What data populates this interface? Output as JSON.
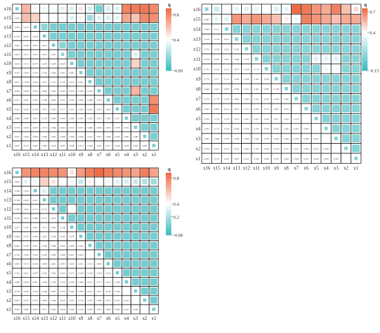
{
  "variables": [
    "x1",
    "x2",
    "x3",
    "x4",
    "x5",
    "x6",
    "x7",
    "x8",
    "x9",
    "x10",
    "x11",
    "x12",
    "x13",
    "x14",
    "x15",
    "x16"
  ],
  "colors": {
    "high": "#ef6b45",
    "mid": "#ffffff",
    "low": "#3fbcc0",
    "grid": "#000000"
  },
  "chart_data": [
    {
      "type": "heatmap",
      "panel": "top-left",
      "legend_title": "q",
      "legend_ticks": [
        "0.8",
        "0.4",
        "-0.09"
      ],
      "legend_range": [
        -0.09,
        0.9
      ],
      "rows": [
        "x16",
        "x15",
        "x14",
        "x13",
        "x12",
        "x11",
        "x10",
        "x9",
        "x8",
        "x7",
        "x6",
        "x5",
        "x4",
        "x3",
        "x2",
        "x1"
      ],
      "cols": [
        "x16",
        "x15",
        "x14",
        "x13",
        "x12",
        "x11",
        "x10",
        "x9",
        "x8",
        "x7",
        "x6",
        "x5",
        "x4",
        "x3",
        "x2",
        "x1"
      ],
      "lower_triangle_labels": [
        [
          "0.950"
        ],
        [
          "0.404",
          "0.618"
        ],
        [
          "0.733",
          "0.645",
          "0.618"
        ],
        [
          "0.697",
          "0.368",
          "0.837",
          "0.251"
        ],
        [
          "0.678",
          "0.571",
          "0.422",
          "0.437",
          "0.167"
        ],
        [
          "0.633",
          "0.712",
          "0.474",
          "0.238",
          "0.204",
          "0.638"
        ],
        [
          "0.567",
          "0.459",
          "0.554",
          "0.324",
          "0.306",
          "0.465",
          "0.482"
        ],
        [
          "0.637",
          "0.528",
          "0.363",
          "0.347",
          "0.177",
          "0.138",
          "0.414",
          "0.291"
        ],
        [
          "0.586",
          "0.498",
          "0.624",
          "0.849",
          "0.491",
          "0.569",
          "0.418",
          "0.598",
          "0.556"
        ],
        [
          "0.477",
          "0.497",
          "0.328",
          "0.458",
          "0.822",
          "0.501",
          "0.342",
          "0.369",
          "0.488",
          "0.527"
        ],
        [
          "0.502",
          "0.528",
          "0.509",
          "0.507",
          "0.505",
          "0.177",
          "0.331",
          "0.567",
          "0.583",
          "0.457",
          "0.581"
        ],
        [
          "0.488",
          "0.484",
          "0.457",
          "0.534",
          "0.493",
          "0.443",
          "0.580",
          "0.444",
          "0.476",
          "0.513",
          "0.385",
          "0.527"
        ],
        [
          "0.578",
          "0.566",
          "0.497",
          "0.374",
          "0.566",
          "0.463",
          "0.514",
          "0.479",
          "0.488",
          "0.569",
          "0.456",
          "0.378",
          "0.434"
        ],
        [
          "0.547",
          "0.499",
          "0.482",
          "0.589",
          "0.481",
          "0.498",
          "0.368",
          "0.428",
          "0.472",
          "0.527",
          "0.469",
          "0.504",
          "0.481",
          "0.488"
        ],
        [
          "0.607",
          "0.570",
          "0.483",
          "0.484",
          "0.532",
          "0.467",
          "0.449",
          "0.474",
          "0.366",
          "0.481",
          "0.471",
          "0.446",
          "0.456",
          "0.409",
          "0.494"
        ]
      ],
      "upper_values": [
        [
          0.05,
          0.65,
          0.45,
          0.35,
          0.38,
          0.32,
          0.3,
          0.48,
          0.28,
          0.05,
          0.28,
          0.3,
          0.82,
          0.85,
          0.86,
          0.8
        ],
        [
          0.62,
          0.55,
          0.4,
          0.38,
          0.36,
          0.3,
          0.45,
          0.15,
          0.3,
          0.3,
          0.32,
          0.7,
          0.6,
          0.8,
          0.78
        ],
        [
          0.05,
          0.1,
          0.05,
          0.05,
          0.05,
          0.05,
          0.05,
          0.05,
          0.05,
          0.05,
          0.05,
          0.05,
          0.05,
          0.05
        ],
        [
          0.05,
          0.05,
          0.05,
          0.05,
          0.05,
          0.05,
          0.05,
          0.05,
          0.05,
          0.05,
          0.05,
          0.05,
          0.05
        ],
        [
          0.05,
          0.1,
          0.05,
          0.05,
          0.05,
          0.05,
          0.05,
          0.05,
          0.05,
          0.05,
          0.05,
          0.05
        ],
        [
          0.1,
          0.05,
          0.05,
          0.05,
          0.05,
          0.05,
          0.05,
          0.05,
          0.3,
          0.05,
          0.05
        ],
        [
          0.05,
          0.05,
          0.05,
          0.05,
          0.05,
          0.05,
          0.05,
          0.55,
          0.05,
          0.05
        ],
        [
          0.05,
          0.05,
          0.05,
          0.05,
          0.05,
          0.05,
          0.05,
          0.05,
          0.05
        ],
        [
          0.05,
          0.05,
          0.05,
          0.05,
          0.05,
          0.05,
          0.05,
          0.05
        ],
        [
          0.05,
          0.05,
          0.05,
          0.05,
          0.65,
          0.05,
          0.05
        ],
        [
          0.05,
          0.05,
          0.05,
          0.05,
          0.05,
          0.78
        ],
        [
          0.05,
          0.05,
          0.05,
          0.05,
          0.85
        ],
        [
          0.05,
          0.05,
          0.05,
          0.05
        ],
        [
          0.05,
          0.05,
          0.05
        ],
        [
          0.05,
          0.05
        ],
        [
          0.05
        ]
      ]
    },
    {
      "type": "heatmap",
      "panel": "top-right",
      "legend_title": "q",
      "legend_ticks": [
        "0.7",
        "0.4",
        "-0.15"
      ],
      "legend_range": [
        -0.15,
        0.75
      ],
      "rows": [
        "x16",
        "x15",
        "x14",
        "x13",
        "x12",
        "x11",
        "x10",
        "x9",
        "x8",
        "x7",
        "x6",
        "x5",
        "x4",
        "x3",
        "x2",
        "x1"
      ],
      "cols": [
        "x16",
        "x15",
        "x14",
        "x13",
        "x12",
        "x11",
        "x10",
        "x9",
        "x8",
        "x7",
        "x6",
        "x5",
        "x4",
        "x3",
        "x2",
        "x1"
      ],
      "lower_triangle_labels": [
        [
          "0.985"
        ],
        [
          "0.409",
          "0.512"
        ],
        [
          "0.719",
          "0.743",
          "0.421"
        ],
        [
          "0.702",
          "0.558",
          "0.422",
          "0.303"
        ],
        [
          "0.678",
          "0.606",
          "0.621",
          "0.409",
          "0.414"
        ],
        [
          "0.701",
          "0.520",
          "0.515",
          "0.537",
          "0.258",
          "0.170"
        ],
        [
          "0.718",
          "0.572",
          "0.514",
          "0.428",
          "0.438",
          "0.463",
          "0.302"
        ],
        [
          "0.628",
          "0.561",
          "0.409",
          "0.506",
          "0.351",
          "0.381",
          "0.380",
          "0.348"
        ],
        [
          "0.746",
          "0.778",
          "0.439",
          "0.860",
          "0.600",
          "0.423",
          "0.564",
          "0.308",
          "0.462"
        ],
        [
          "0.595",
          "0.685",
          "0.414",
          "0.475",
          "0.511",
          "0.416",
          "0.573",
          "0.467",
          "0.616"
        ],
        [
          "0.594",
          "0.756",
          "0.578",
          "0.474",
          "0.447",
          "0.601",
          "0.444",
          "0.427",
          "0.529",
          "0.374"
        ],
        [
          "0.692",
          "0.723",
          "0.529",
          "0.509",
          "0.438",
          "0.414",
          "0.393",
          "0.209",
          "0.285",
          "0.491",
          "0.482"
        ],
        [
          "0.685",
          "0.499",
          "0.578",
          "0.369",
          "0.398",
          "0.342",
          "0.378",
          "0.486",
          "0.444",
          "0.340",
          "0.340",
          "0.391"
        ],
        [
          "0.594",
          "0.624",
          "0.613",
          "0.529",
          "0.482",
          "0.349",
          "0.358",
          "0.414",
          "0.537",
          "0.523",
          "0.496",
          "0.335",
          "0.389"
        ],
        [
          "0.635",
          "0.719",
          "0.532",
          "0.481",
          "0.512",
          "0.550",
          "0.369",
          "0.332",
          "0.422",
          "0.445",
          "0.347",
          "0.456",
          "0.383",
          "0.476"
        ],
        [
          "0.660",
          "0.748",
          "0.515",
          "0.415",
          "0.495",
          "0.499",
          "0.464",
          "0.446",
          "0.333",
          "0.456",
          "0.765",
          "0.476",
          "0.328",
          "0.268",
          "0.563"
        ]
      ],
      "upper_values": [
        [
          0.05,
          0.25,
          0.4,
          0.32,
          0.3,
          0.32,
          0.4,
          0.28,
          0.32,
          0.75,
          0.72,
          0.65,
          0.6,
          0.7,
          0.55,
          0.5
        ],
        [
          0.3,
          0.3,
          0.65,
          0.6,
          0.65,
          0.6,
          0.55,
          0.45,
          0.35,
          0.7,
          0.65,
          0.6,
          0.55,
          0.6,
          0.6
        ],
        [
          0.05,
          0.05,
          0.05,
          0.05,
          0.05,
          0.05,
          0.05,
          0.05,
          0.05,
          0.05,
          0.05,
          0.05,
          0.05,
          0.05
        ],
        [
          0.05,
          0.05,
          0.05,
          0.05,
          0.05,
          0.05,
          0.05,
          0.05,
          0.05,
          0.05,
          0.05,
          0.05,
          0.05
        ],
        [
          0.05,
          0.05,
          0.05,
          0.05,
          0.05,
          0.05,
          0.05,
          0.05,
          0.05,
          0.05,
          0.05,
          0.05
        ],
        [
          0.05,
          0.05,
          0.05,
          0.05,
          0.05,
          0.05,
          0.3,
          0.3,
          0.3,
          0.05,
          0.05
        ],
        [
          0.05,
          0.05,
          0.05,
          0.05,
          0.05,
          0.05,
          0.35,
          0.35,
          0.05,
          0.05
        ],
        [
          0.05,
          0.05,
          0.05,
          0.05,
          0.05,
          0.05,
          0.05,
          0.05,
          0.05
        ],
        [
          0.05,
          0.05,
          0.05,
          0.05,
          0.05,
          0.05,
          0.05,
          0.05
        ],
        [
          0.05,
          0.05,
          0.05,
          0.05,
          0.05,
          0.05,
          0.05
        ],
        [
          0.05,
          0.05,
          0.05,
          0.05,
          0.05,
          0.05
        ],
        [
          0.05,
          0.05,
          0.05,
          0.05,
          0.05
        ],
        [
          0.05,
          0.05,
          0.05,
          0.05
        ],
        [
          0.05,
          0.05,
          0.05
        ],
        [
          0.05,
          0.05
        ],
        [
          0.05
        ]
      ]
    },
    {
      "type": "heatmap",
      "panel": "bottom-left",
      "legend_title": "q",
      "legend_ticks": [
        "0.8",
        "0.4",
        "0.2",
        "-0.08"
      ],
      "legend_range": [
        -0.08,
        0.88
      ],
      "rows": [
        "x16",
        "x15",
        "x14",
        "x13",
        "x12",
        "x11",
        "x10",
        "x9",
        "x8",
        "x7",
        "x6",
        "x5",
        "x4",
        "x3",
        "x2",
        "x1"
      ],
      "cols": [
        "x16",
        "x15",
        "x14",
        "x13",
        "x12",
        "x11",
        "x10",
        "x9",
        "x8",
        "x7",
        "x6",
        "x5",
        "x4",
        "x3",
        "x2",
        "x1"
      ],
      "lower_triangle_labels": [
        [
          "0.883"
        ],
        [
          "0.598",
          "0.563"
        ],
        [
          "0.798",
          "0.595",
          "0.527"
        ],
        [
          "0.789",
          "0.661",
          "0.374",
          "0.155"
        ],
        [
          "0.746",
          "0.655",
          "0.388",
          "0.573",
          "0.414"
        ],
        [
          "0.597",
          "0.785",
          "0.467",
          "0.373",
          "0.443",
          "0.138"
        ],
        [
          "0.668",
          "0.576",
          "0.446",
          "0.465",
          "0.508",
          "0.603",
          "0.274"
        ],
        [
          "0.663",
          "0.728",
          "0.421",
          "0.546",
          "0.460",
          "0.564",
          "0.426",
          "0.265"
        ],
        [
          "0.746",
          "0.524",
          "0.545",
          "0.478",
          "0.506",
          "0.368",
          "0.407",
          "0.423"
        ],
        [
          "0.695",
          "0.713",
          "0.236",
          "0.390",
          "0.441",
          "0.287",
          "0.229",
          "0.241",
          "0.513",
          "0.493"
        ],
        [
          "0.762",
          "0.621",
          "0.495",
          "0.362",
          "0.445",
          "0.414",
          "0.275",
          "0.340",
          "0.328",
          "0.318",
          "0.233"
        ],
        [
          "0.669",
          "0.600",
          "0.461",
          "0.394",
          "0.334",
          "0.334",
          "0.366",
          "0.468",
          "0.523",
          "0.177",
          "0.233",
          "0.208"
        ],
        [
          "0.738",
          "0.520",
          "0.533",
          "0.348",
          "0.297",
          "0.218",
          "0.362",
          "0.380",
          "0.212",
          "0.275",
          "0.339",
          "0.240"
        ],
        [
          "0.667",
          "0.575",
          "0.573",
          "0.406",
          "0.346",
          "0.479",
          "0.291",
          "0.314",
          "0.533",
          "0.300",
          "0.227",
          "0.137",
          "0.342"
        ],
        [
          "0.595",
          "0.484",
          "0.503",
          "0.571",
          "0.491",
          "0.434",
          "0.368",
          "0.319",
          "0.304",
          "0.331",
          "0.260",
          "0.304",
          "0.241",
          "0.296"
        ]
      ],
      "upper_values": [
        [
          0.05,
          0.75,
          0.8,
          0.8,
          0.78,
          0.75,
          0.5,
          0.72,
          0.82,
          0.88,
          0.82,
          0.78,
          0.75,
          0.7,
          0.82,
          0.7
        ],
        [
          0.3,
          0.35,
          0.55,
          0.5,
          0.4,
          0.35,
          0.25,
          0.45,
          0.4,
          0.35,
          0.3,
          0.28,
          0.25,
          0.2,
          0.15
        ],
        [
          0.05,
          0.3,
          0.05,
          0.05,
          0.05,
          0.05,
          0.05,
          0.05,
          0.05,
          0.05,
          0.05,
          0.05,
          0.05,
          0.05
        ],
        [
          0.05,
          0.05,
          0.05,
          0.05,
          0.05,
          0.05,
          0.05,
          0.05,
          0.05,
          0.05,
          0.05,
          0.05,
          0.05
        ],
        [
          0.05,
          0.05,
          0.4,
          0.05,
          0.05,
          0.05,
          0.05,
          0.05,
          0.05,
          0.05,
          0.05,
          0.05
        ],
        [
          0.05,
          0.05,
          0.05,
          0.05,
          0.05,
          0.05,
          0.05,
          0.05,
          0.05,
          0.05,
          0.05
        ],
        [
          0.05,
          0.05,
          0.05,
          0.05,
          0.05,
          0.05,
          0.05,
          0.05,
          0.05,
          0.05
        ],
        [
          0.05,
          0.05,
          0.05,
          0.05,
          0.05,
          0.05,
          0.05,
          0.05,
          0.05
        ],
        [
          0.05,
          0.05,
          0.05,
          0.05,
          0.05,
          0.05,
          0.05,
          0.05
        ],
        [
          0.05,
          0.05,
          0.05,
          0.05,
          0.05,
          0.05,
          0.05
        ],
        [
          0.05,
          0.05,
          0.05,
          0.05,
          0.05,
          0.05
        ],
        [
          0.05,
          0.05,
          0.05,
          0.05,
          0.05
        ],
        [
          0.05,
          0.05,
          0.05,
          0.05
        ],
        [
          0.05,
          0.05,
          0.05
        ],
        [
          0.05,
          0.05
        ],
        [
          0.05
        ]
      ]
    }
  ]
}
